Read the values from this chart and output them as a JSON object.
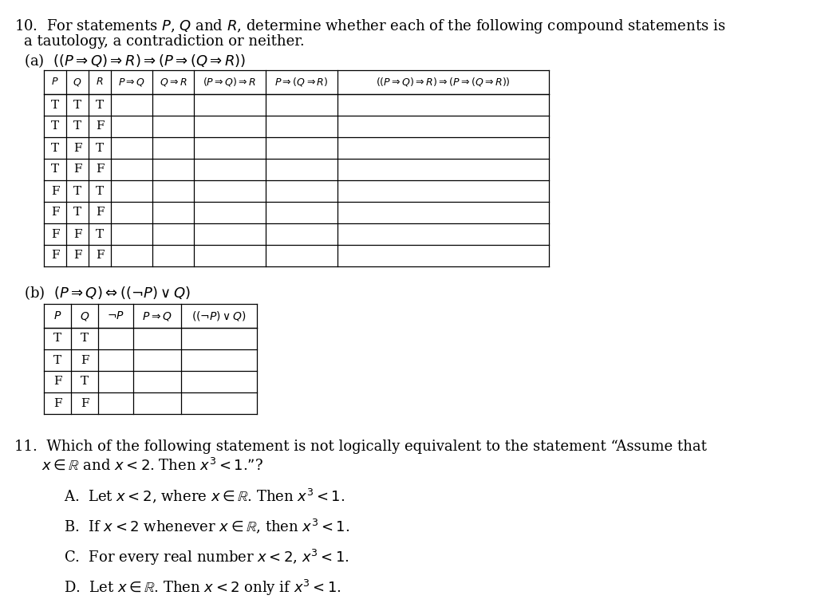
{
  "background_color": "#ffffff",
  "text_color": "#000000",
  "q10_line1": "10.  For statements $P$, $Q$ and $R$, determine whether each of the following compound statements is",
  "q10_line2": "a tautology, a contradiction or neither.",
  "q10_line3": "(a)  $((P \\Rightarrow Q) \\Rightarrow R) \\Rightarrow (P \\Rightarrow (Q \\Rightarrow R))$",
  "table_a_headers": [
    "$P$",
    "$Q$",
    "$R$",
    "$P \\Rightarrow Q$",
    "$Q \\Rightarrow R$",
    "$(P\\Rightarrow Q)\\Rightarrow R$",
    "$P\\Rightarrow(Q\\Rightarrow R)$",
    "$((P\\Rightarrow Q)\\Rightarrow R)\\Rightarrow(P\\Rightarrow(Q\\Rightarrow R))$"
  ],
  "table_a_rows": [
    [
      "T",
      "T",
      "T",
      "",
      "",
      "",
      "",
      ""
    ],
    [
      "T",
      "T",
      "F",
      "",
      "",
      "",
      "",
      ""
    ],
    [
      "T",
      "F",
      "T",
      "",
      "",
      "",
      "",
      ""
    ],
    [
      "T",
      "F",
      "F",
      "",
      "",
      "",
      "",
      ""
    ],
    [
      "F",
      "T",
      "T",
      "",
      "",
      "",
      "",
      ""
    ],
    [
      "F",
      "T",
      "F",
      "",
      "",
      "",
      "",
      ""
    ],
    [
      "F",
      "F",
      "T",
      "",
      "",
      "",
      "",
      ""
    ],
    [
      "F",
      "F",
      "F",
      "",
      "",
      "",
      "",
      ""
    ]
  ],
  "q10b_line1": "(b)  $(P \\Rightarrow Q) \\Leftrightarrow ((\\neg P) \\vee Q)$",
  "table_b_headers": [
    "$P$",
    "$Q$",
    "$\\neg P$",
    "$P \\Rightarrow Q$",
    "$((\\neg P)\\vee Q)$"
  ],
  "table_b_rows": [
    [
      "T",
      "T",
      "",
      "",
      ""
    ],
    [
      "T",
      "F",
      "",
      "",
      ""
    ],
    [
      "F",
      "T",
      "",
      "",
      ""
    ],
    [
      "F",
      "F",
      "",
      "",
      ""
    ]
  ],
  "q11_line1": "11.  Which of the following statement is not logically equivalent to the statement “Assume that",
  "q11_line2": "      $x \\in \\mathbb{R}$ and $x < 2$. Then $x^3 < 1$.”?",
  "q11_A": "A.  Let $x < 2$, where $x \\in \\mathbb{R}$. Then $x^3 < 1$.",
  "q11_B": "B.  If $x < 2$ whenever $x \\in \\mathbb{R}$, then $x^3 < 1$.",
  "q11_C": "C.  For every real number $x < 2$, $x^3 < 1$.",
  "q11_D": "D.  Let $x \\in \\mathbb{R}$. Then $x < 2$ only if $x^3 < 1$."
}
